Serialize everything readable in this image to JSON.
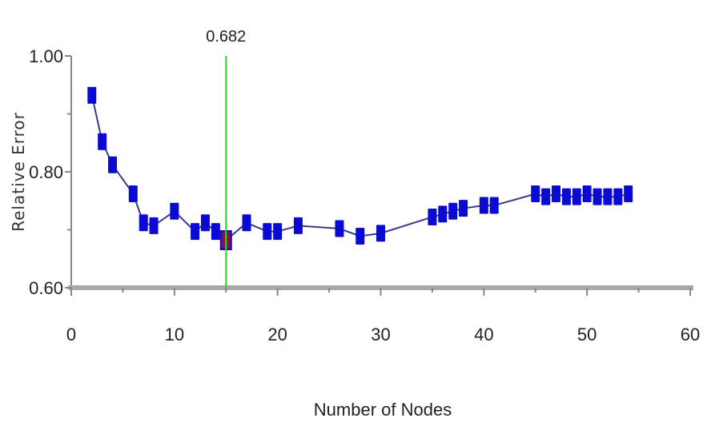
{
  "chart_data": {
    "type": "line",
    "xlabel": "Number of Nodes",
    "ylabel": "Relative Error",
    "xlim": [
      0,
      60
    ],
    "ylim": [
      0.6,
      1.0
    ],
    "x_ticks": [
      "0",
      "10",
      "20",
      "30",
      "40",
      "50",
      "60"
    ],
    "x_tick_values": [
      0,
      10,
      20,
      30,
      40,
      50,
      60
    ],
    "y_ticks": [
      "0.60",
      "0.80",
      "1.00"
    ],
    "y_tick_values": [
      0.6,
      0.8,
      1.0
    ],
    "y_minor_ticks": [
      0.7,
      0.9
    ],
    "grid": false,
    "series": [
      {
        "x": [
          2,
          3,
          4,
          6,
          7,
          8,
          10,
          12,
          13,
          14,
          15,
          17,
          19,
          20,
          22,
          26,
          28,
          30,
          35,
          36,
          37,
          38,
          40,
          41,
          45,
          46,
          47,
          48,
          49,
          50,
          51,
          52,
          53,
          54
        ],
        "y": [
          0.932,
          0.852,
          0.812,
          0.762,
          0.712,
          0.707,
          0.732,
          0.697,
          0.712,
          0.697,
          0.682,
          0.712,
          0.697,
          0.697,
          0.707,
          0.702,
          0.689,
          0.694,
          0.722,
          0.727,
          0.732,
          0.737,
          0.742,
          0.742,
          0.762,
          0.757,
          0.762,
          0.757,
          0.757,
          0.762,
          0.757,
          0.757,
          0.757,
          0.762
        ]
      }
    ],
    "selected_point": {
      "x": 15,
      "y": 0.682,
      "label": "0.682"
    },
    "colors": {
      "marker": "#0a0ad2",
      "line": "#3a3a8a",
      "selected_marker": "#8a1040",
      "reference_line": "#22dd22",
      "axis": "#888888"
    }
  }
}
